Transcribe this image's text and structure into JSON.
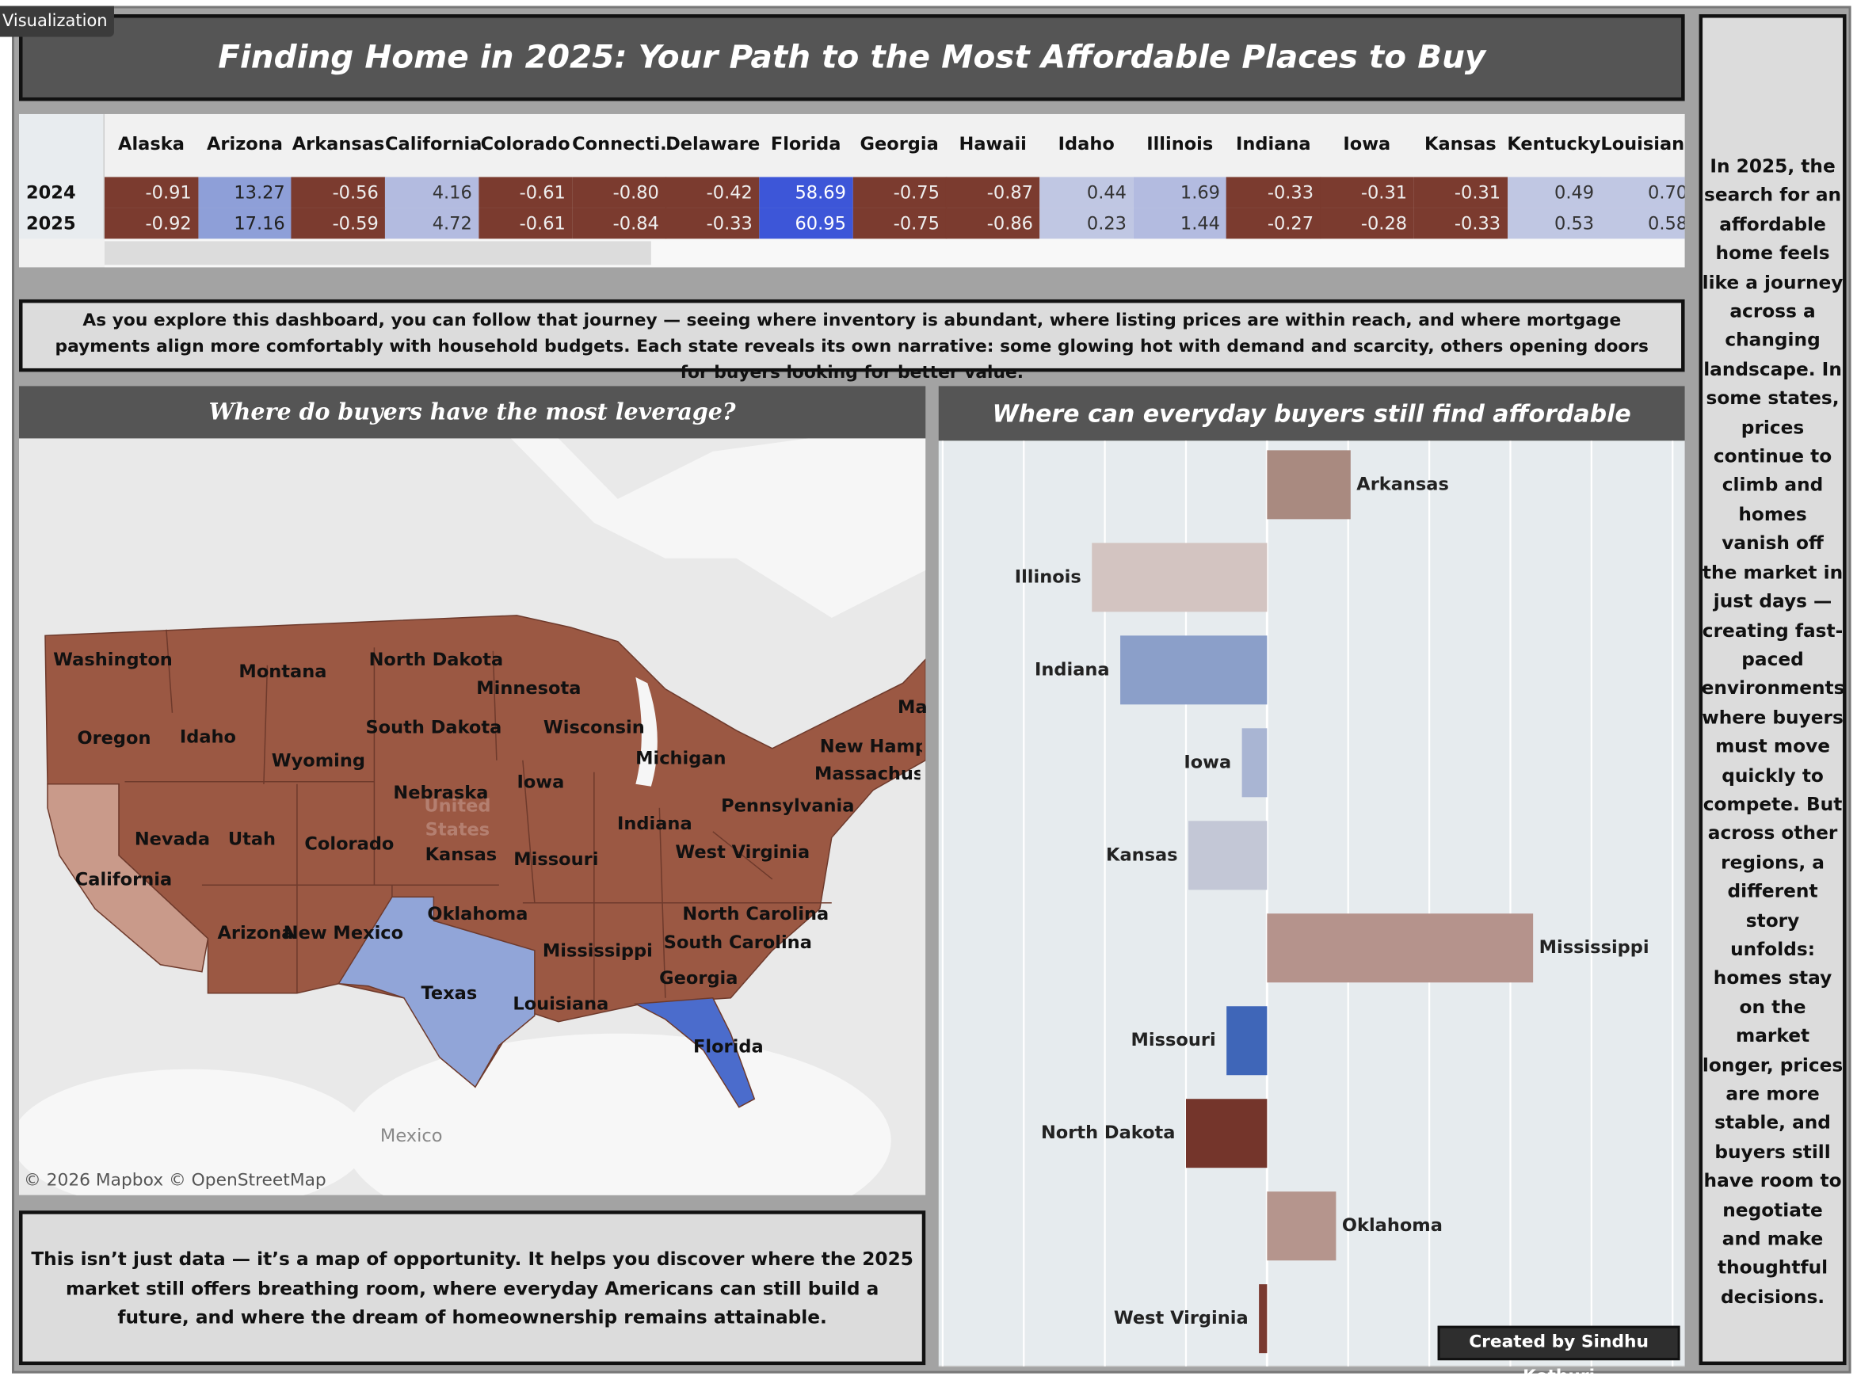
{
  "tag": "Visualization",
  "title": "Finding Home in 2025: Your Path to the Most Affordable Places to Buy",
  "table": {
    "columns": [
      "Alaska",
      "Arizona",
      "Arkansas",
      "California",
      "Colorado",
      "Connecti..",
      "Delaware",
      "Florida",
      "Georgia",
      "Hawaii",
      "Idaho",
      "Illinois",
      "Indiana",
      "Iowa",
      "Kansas",
      "Kentucky",
      "Louisiana"
    ],
    "rows": [
      {
        "label": "2024",
        "values": [
          "-0.91",
          "13.27",
          "-0.56",
          "4.16",
          "-0.61",
          "-0.80",
          "-0.42",
          "58.69",
          "-0.75",
          "-0.87",
          "0.44",
          "1.69",
          "-0.33",
          "-0.31",
          "-0.31",
          "0.49",
          "0.70"
        ]
      },
      {
        "label": "2025",
        "values": [
          "-0.92",
          "17.16",
          "-0.59",
          "4.72",
          "-0.61",
          "-0.84",
          "-0.33",
          "60.95",
          "-0.75",
          "-0.86",
          "0.23",
          "1.44",
          "-0.27",
          "-0.28",
          "-0.33",
          "0.53",
          "0.58"
        ]
      }
    ]
  },
  "intro_text": "As you explore this dashboard, you can follow that journey — seeing where inventory is abundant, where listing prices are within reach, and where mortgage payments align more comfortably with household budgets. Each state reveals its own narrative: some glowing hot with demand and scarcity, others opening doors for buyers looking for better value.",
  "map": {
    "title": "Where do buyers have the most leverage?",
    "labels": [
      "Washington",
      "Montana",
      "North Dakota",
      "Minnesota",
      "Oregon",
      "Idaho",
      "South Dakota",
      "Wisconsin",
      "Michigan",
      "Wyoming",
      "Ma",
      "New Hamps",
      "Massachuset",
      "Nebraska",
      "Iowa",
      "Pennsylvania",
      "Nevada",
      "Utah",
      "Colorado",
      "Kansas",
      "Indiana",
      "Missouri",
      "West Virginia",
      "California",
      "Oklahoma",
      "North Carolina",
      "Arizona",
      "New Mexico",
      "Mississippi",
      "South Carolina",
      "Georgia",
      "Texas",
      "Louisiana",
      "Florida"
    ],
    "watermark": "United States",
    "country_label": "Mexico",
    "attribution": "© 2026 Mapbox © OpenStreetMap"
  },
  "chart_data": {
    "type": "bar",
    "orientation": "horizontal",
    "title": "Where can everyday buyers still find affordable homes?",
    "categories": [
      "Arkansas",
      "Illinois",
      "Indiana",
      "Iowa",
      "Kansas",
      "Mississippi",
      "Missouri",
      "North Dakota",
      "Oklahoma",
      "West Virginia"
    ],
    "values": [
      1.03,
      -2.16,
      -1.81,
      -0.31,
      -0.97,
      3.28,
      -0.5,
      -1.0,
      0.85,
      -0.1
    ],
    "colors": [
      "#a98a80",
      "#d3c4c1",
      "#8b9fc9",
      "#a9b5d3",
      "#c3c7d6",
      "#b5938c",
      "#3f66b8",
      "#74352b",
      "#b5958d",
      "#7a3a30"
    ],
    "xlim": [
      -4.05,
      5.15
    ],
    "xticks": [
      -4,
      -3,
      -2,
      -1,
      0,
      1,
      2,
      3,
      4,
      5
    ],
    "grid": true
  },
  "closing_text": "This isn’t just data — it’s a map of opportunity. It helps you discover where the 2025 market still offers breathing room, where everyday Americans can still build a future, and where the dream of homeownership remains attainable.",
  "sidebar_text": "In 2025, the search for an affordable home feels like a journey across a changing landscape. In some states, prices continue to climb and homes vanish off the market in just days — creating fast-paced environments where buyers must move quickly to compete. But across other regions, a different story unfolds: homes stay on the market longer, prices are more stable, and buyers still have room to negotiate and make thoughtful decisions.",
  "credit": "Created by Sindhu Kothuri"
}
